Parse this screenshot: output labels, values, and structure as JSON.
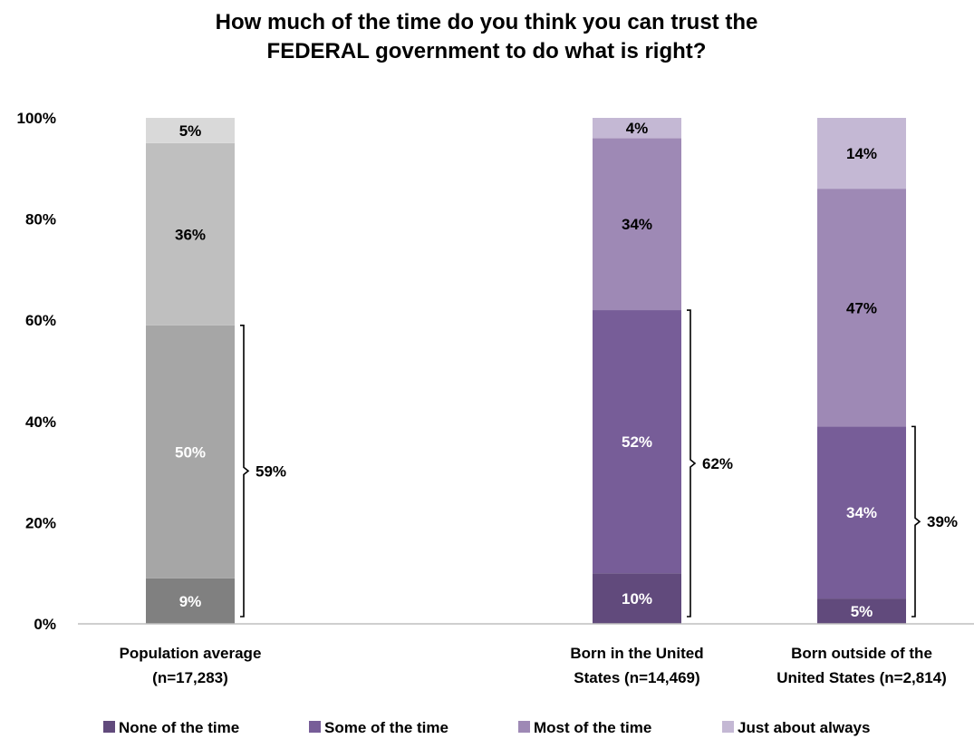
{
  "chart_data": {
    "type": "bar",
    "stacked": true,
    "title_lines": [
      "How much of the time do you think you can trust the",
      "FEDERAL government to do what is right?"
    ],
    "ylim": [
      0,
      100
    ],
    "yticks": [
      "0%",
      "20%",
      "40%",
      "60%",
      "80%",
      "100%"
    ],
    "ytick_values": [
      0,
      20,
      40,
      60,
      80,
      100
    ],
    "categories": [
      {
        "lines": [
          "Population average",
          "(n=17,283)"
        ],
        "slot": 0,
        "palette": "gray"
      },
      {
        "lines": [
          "Born in the United",
          "States (n=14,469)"
        ],
        "slot": 2,
        "palette": "purple"
      },
      {
        "lines": [
          "Born outside of the",
          "United States (n=2,814)"
        ],
        "slot": 3,
        "palette": "purple"
      }
    ],
    "series": [
      {
        "name": "None of the time",
        "values": [
          9,
          10,
          5
        ],
        "labels": [
          "9%",
          "10%",
          "5%"
        ]
      },
      {
        "name": "Some of the time",
        "values": [
          50,
          52,
          34
        ],
        "labels": [
          "50%",
          "52%",
          "34%"
        ]
      },
      {
        "name": "Most of the time",
        "values": [
          36,
          34,
          47
        ],
        "labels": [
          "36%",
          "34%",
          "47%"
        ]
      },
      {
        "name": "Just about always",
        "values": [
          5,
          4,
          14
        ],
        "labels": [
          "5%",
          "4%",
          "14%"
        ]
      }
    ],
    "bracket_labels": [
      "59%",
      "62%",
      "39%"
    ],
    "bracket_values": [
      59,
      62,
      39
    ],
    "colors": {
      "purple": [
        "#614a7c",
        "#775d98",
        "#9e89b5",
        "#c4b8d4"
      ],
      "gray": [
        "#808080",
        "#a6a6a6",
        "#bfbfbf",
        "#d9d9d9"
      ],
      "label_dark": "#000000",
      "label_light": "#ffffff",
      "axis": "#bfbfbf"
    },
    "label_light_series": [
      0,
      1
    ],
    "legend_position": "bottom",
    "grid": false
  }
}
